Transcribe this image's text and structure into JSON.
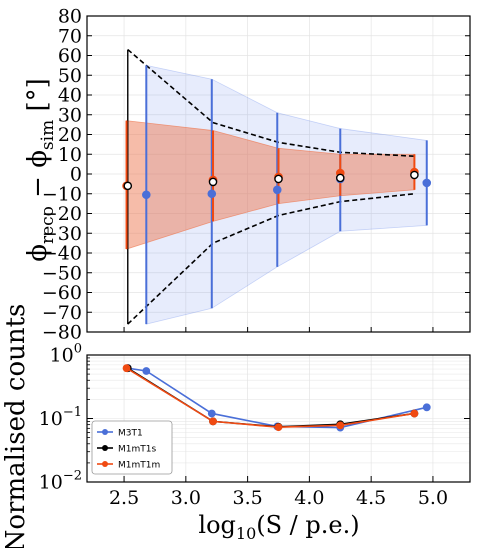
{
  "chart_data": [
    {
      "type": "errorbar",
      "ylabel": "ϕ_reco − ϕ_sim [°]",
      "ylim": [
        -80,
        80
      ],
      "xlim": [
        2.2,
        5.3
      ],
      "yticks": [
        "80",
        "70",
        "60",
        "50",
        "40",
        "30",
        "20",
        "10",
        "0",
        "−10",
        "−20",
        "−30",
        "−40",
        "−50",
        "−60",
        "−70",
        "−80"
      ],
      "grid": true,
      "series": [
        {
          "name": "M3T1",
          "color": "#4a6fd8",
          "marker_fill": "#4a6fd8",
          "points": [
            {
              "x": 2.68,
              "y": -10.5,
              "ylo": -76,
              "yhi": 55
            },
            {
              "x": 3.21,
              "y": -10,
              "ylo": -68,
              "yhi": 48
            },
            {
              "x": 3.74,
              "y": -8,
              "ylo": -47,
              "yhi": 31
            },
            {
              "x": 4.25,
              "y": -2.5,
              "ylo": -29,
              "yhi": 23
            },
            {
              "x": 4.95,
              "y": -4.5,
              "ylo": -26,
              "yhi": 17
            }
          ],
          "band": {
            "x": [
              2.68,
              3.21,
              3.74,
              4.25,
              4.95
            ],
            "lo": [
              -76,
              -68,
              -47,
              -29,
              -26
            ],
            "hi": [
              55,
              48,
              31,
              23,
              17
            ]
          }
        },
        {
          "name": "M1mT1s",
          "color": "#000000",
          "marker_fill": "#ffffff",
          "points": [
            {
              "x": 2.53,
              "y": -6,
              "ylo": -76,
              "yhi": 63
            },
            {
              "x": 3.22,
              "y": -4,
              "ylo": -35,
              "yhi": 26
            },
            {
              "x": 3.75,
              "y": -2.5,
              "ylo": -21,
              "yhi": 16
            },
            {
              "x": 4.25,
              "y": -2,
              "ylo": -14,
              "yhi": 11
            },
            {
              "x": 4.85,
              "y": -0.5,
              "ylo": -10,
              "yhi": 9
            }
          ],
          "band": {
            "x": [
              2.53,
              3.22,
              3.75,
              4.25,
              4.85
            ],
            "lo": [
              -76,
              -35,
              -21,
              -14,
              -10
            ],
            "hi": [
              63,
              26,
              16,
              11,
              9
            ]
          }
        },
        {
          "name": "M1mT1m",
          "color": "#f04a12",
          "marker_fill": "#f04a12",
          "points": [
            {
              "x": 2.52,
              "y": -6,
              "ylo": -38,
              "yhi": 27
            },
            {
              "x": 3.22,
              "y": -3,
              "ylo": -24,
              "yhi": 22
            },
            {
              "x": 3.75,
              "y": -1.5,
              "ylo": -15,
              "yhi": 13
            },
            {
              "x": 4.25,
              "y": 0.5,
              "ylo": -11,
              "yhi": 10
            },
            {
              "x": 4.85,
              "y": 1,
              "ylo": -8,
              "yhi": 10
            }
          ],
          "band": {
            "x": [
              2.52,
              3.22,
              3.75,
              4.25,
              4.85
            ],
            "lo": [
              -38,
              -24,
              -15,
              -11,
              -8
            ],
            "hi": [
              27,
              22,
              13,
              10,
              10
            ]
          }
        }
      ]
    },
    {
      "type": "line",
      "ylabel": "Normalised counts",
      "xlabel": "log₁₀(S / p.e.)",
      "yscale": "log",
      "ylim": [
        0.01,
        1
      ],
      "xlim": [
        2.2,
        5.3
      ],
      "yticks": [
        {
          "base": "10",
          "exp": "0",
          "value": 1
        },
        {
          "base": "10",
          "exp": "−1",
          "value": 0.1
        },
        {
          "base": "10",
          "exp": "−2",
          "value": 0.01
        }
      ],
      "xticks": [
        "2.5",
        "3.0",
        "3.5",
        "4.0",
        "4.5",
        "5.0"
      ],
      "grid": true,
      "legend_position": "lower-left",
      "series": [
        {
          "name": "M3T1",
          "color": "#4a6fd8",
          "x": [
            2.53,
            2.68,
            3.21,
            3.74,
            4.25,
            4.95
          ],
          "y": [
            0.62,
            0.56,
            0.12,
            0.075,
            0.072,
            0.15
          ]
        },
        {
          "name": "M1mT1s",
          "color": "#000000",
          "x": [
            2.53,
            3.22,
            3.75,
            4.25,
            4.85
          ],
          "y": [
            0.62,
            0.09,
            0.074,
            0.081,
            0.12
          ]
        },
        {
          "name": "M1mT1m",
          "color": "#f04a12",
          "x": [
            2.52,
            3.22,
            3.75,
            4.25,
            4.85
          ],
          "y": [
            0.62,
            0.09,
            0.073,
            0.078,
            0.12
          ]
        }
      ]
    }
  ]
}
